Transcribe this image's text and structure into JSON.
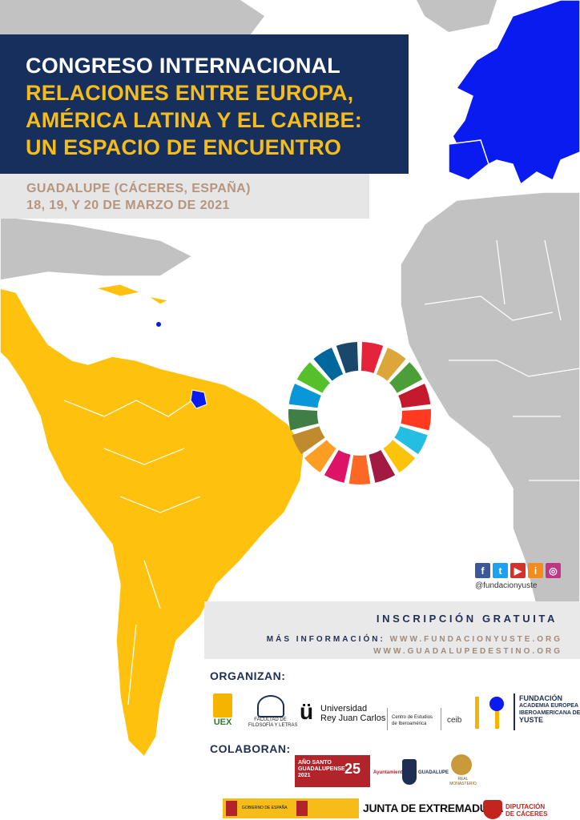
{
  "title": {
    "line1": "CONGRESO INTERNACIONAL",
    "line2": "RELACIONES ENTRE EUROPA,",
    "line3": "AMÉRICA LATINA Y EL CARIBE:",
    "line4": "UN ESPACIO DE ENCUENTRO"
  },
  "place": {
    "line1": "GUADALUPE (CÁCERES, ESPAÑA)",
    "line2": "18, 19, Y 20 DE MARZO DE 2021"
  },
  "social": {
    "handle": "@fundacionyuste",
    "icons": [
      {
        "name": "facebook-icon",
        "glyph": "f",
        "color": "#3b5998"
      },
      {
        "name": "twitter-icon",
        "glyph": "t",
        "color": "#1da1f2"
      },
      {
        "name": "youtube-icon",
        "glyph": "▶",
        "color": "#d4322a"
      },
      {
        "name": "ivoox-icon",
        "glyph": "i",
        "color": "#f48b1b"
      },
      {
        "name": "instagram-icon",
        "glyph": "◎",
        "color": "#c13584"
      }
    ]
  },
  "info": {
    "registration": "INSCRIPCIÓN GRATUITA",
    "more_label": "MÁS INFORMACIÓN:",
    "web1": "WWW.FUNDACIONYUSTE.ORG",
    "web2": "WWW.GUADALUPEDESTINO.ORG"
  },
  "organizers": {
    "label": "ORGANIZAN:",
    "uex": "UEX",
    "facultad": "FACULTAD DE\nFILOSOFÍA Y LETRAS",
    "urjc_line1": "Universidad",
    "urjc_line2": "Rey Juan Carlos",
    "ceib_line1": "Centro de Estudios",
    "ceib_line2": "de Iberoamérica",
    "ceib": "ceib",
    "fund_line1": "FUNDACIÓN",
    "fund_line2": "ACADEMIA EUROPEA E",
    "fund_line3": "IBEROAMERICANA DE",
    "fund_line4": "YUSTE"
  },
  "collaborators": {
    "label": "COLABORAN:",
    "ano_santo": "AÑO SANTO GUADALUPENSE 2021",
    "years": "25",
    "ayto": "Ayuntamiento",
    "guadalupe": "GUADALUPE",
    "monasterio": "REAL MONASTERIO",
    "gobierno": "GOBIERNO DE ESPAÑA",
    "junta": "JUNTA DE EXTREMADURA",
    "diputacion_line1": "DIPUTACIÓN",
    "diputacion_line2": "DE CÁCERES"
  },
  "colors": {
    "navy": "#162f5d",
    "gold": "#f6bd1a",
    "latam": "#fec20e",
    "europe": "#0a1bf0",
    "land": "#c2c2c2"
  },
  "sdg_colors": [
    "#e5243b",
    "#dda63a",
    "#4c9f38",
    "#c5192d",
    "#ff3a21",
    "#26bde2",
    "#fcc30b",
    "#a21942",
    "#fd6925",
    "#dd1367",
    "#fd9d24",
    "#bf8b2e",
    "#3f7e44",
    "#0a97d9",
    "#56c02b",
    "#00689d",
    "#19486a"
  ]
}
